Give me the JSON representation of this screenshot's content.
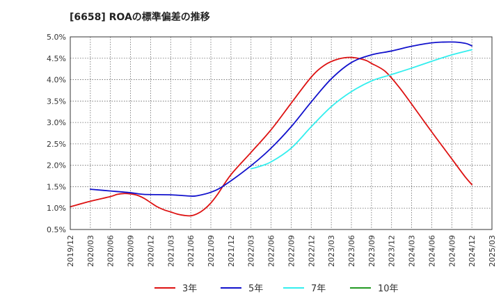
{
  "chart_data": {
    "type": "line",
    "title": "[6658]  ROAの標準偏差の推移",
    "xlabel": "",
    "ylabel": "",
    "ylim": [
      0.5,
      5.0
    ],
    "grid": true,
    "legend_position": "bottom",
    "y_ticks": [
      "0.5%",
      "1.0%",
      "1.5%",
      "2.0%",
      "2.5%",
      "3.0%",
      "3.5%",
      "4.0%",
      "4.5%",
      "5.0%"
    ],
    "x_ticks": [
      "2019/12",
      "2020/03",
      "2020/06",
      "2020/09",
      "2020/12",
      "2021/03",
      "2021/06",
      "2021/09",
      "2021/12",
      "2022/03",
      "2022/06",
      "2022/09",
      "2022/12",
      "2023/03",
      "2023/06",
      "2023/09",
      "2023/12",
      "2024/03",
      "2024/06",
      "2024/09",
      "2024/12",
      "2025/03"
    ],
    "series": [
      {
        "name": "3年",
        "color": "#dd1111",
        "points": [
          [
            "2019/12",
            1.03
          ],
          [
            "2020/03",
            1.16
          ],
          [
            "2020/06",
            1.27
          ],
          [
            "2020/07",
            1.32
          ],
          [
            "2020/08",
            1.34
          ],
          [
            "2020/09",
            1.33
          ],
          [
            "2020/10",
            1.3
          ],
          [
            "2020/11",
            1.23
          ],
          [
            "2020/12",
            1.13
          ],
          [
            "2021/01",
            1.03
          ],
          [
            "2021/02",
            0.96
          ],
          [
            "2021/03",
            0.91
          ],
          [
            "2021/04",
            0.86
          ],
          [
            "2021/05",
            0.83
          ],
          [
            "2021/06",
            0.82
          ],
          [
            "2021/07",
            0.87
          ],
          [
            "2021/08",
            0.97
          ],
          [
            "2021/09",
            1.12
          ],
          [
            "2021/10",
            1.32
          ],
          [
            "2021/12",
            1.78
          ],
          [
            "2022/03",
            2.3
          ],
          [
            "2022/06",
            2.83
          ],
          [
            "2022/09",
            3.45
          ],
          [
            "2022/12",
            4.06
          ],
          [
            "2023/02",
            4.34
          ],
          [
            "2023/04",
            4.48
          ],
          [
            "2023/06",
            4.52
          ],
          [
            "2023/08",
            4.46
          ],
          [
            "2023/09",
            4.38
          ],
          [
            "2023/11",
            4.2
          ],
          [
            "2024/01",
            3.85
          ],
          [
            "2024/03",
            3.43
          ],
          [
            "2024/06",
            2.78
          ],
          [
            "2024/09",
            2.15
          ],
          [
            "2024/11",
            1.73
          ],
          [
            "2024/12",
            1.55
          ]
        ]
      },
      {
        "name": "5年",
        "color": "#1111cc",
        "points": [
          [
            "2020/03",
            1.44
          ],
          [
            "2020/06",
            1.4
          ],
          [
            "2020/09",
            1.36
          ],
          [
            "2020/11",
            1.32
          ],
          [
            "2021/03",
            1.31
          ],
          [
            "2021/06",
            1.28
          ],
          [
            "2021/07",
            1.29
          ],
          [
            "2021/09",
            1.37
          ],
          [
            "2021/11",
            1.53
          ],
          [
            "2022/03",
            1.99
          ],
          [
            "2022/06",
            2.4
          ],
          [
            "2022/09",
            2.9
          ],
          [
            "2022/12",
            3.48
          ],
          [
            "2023/03",
            4.02
          ],
          [
            "2023/06",
            4.4
          ],
          [
            "2023/09",
            4.58
          ],
          [
            "2023/12",
            4.67
          ],
          [
            "2024/03",
            4.78
          ],
          [
            "2024/06",
            4.86
          ],
          [
            "2024/09",
            4.88
          ],
          [
            "2024/11",
            4.85
          ],
          [
            "2024/12",
            4.79
          ]
        ]
      },
      {
        "name": "7年",
        "color": "#33eeee",
        "points": [
          [
            "2022/03",
            1.92
          ],
          [
            "2022/04",
            1.96
          ],
          [
            "2022/06",
            2.08
          ],
          [
            "2022/09",
            2.4
          ],
          [
            "2022/12",
            2.9
          ],
          [
            "2023/03",
            3.37
          ],
          [
            "2023/06",
            3.72
          ],
          [
            "2023/09",
            3.97
          ],
          [
            "2023/12",
            4.12
          ],
          [
            "2024/03",
            4.27
          ],
          [
            "2024/06",
            4.43
          ],
          [
            "2024/09",
            4.58
          ],
          [
            "2024/12",
            4.7
          ]
        ]
      },
      {
        "name": "10年",
        "color": "#229922",
        "points": []
      }
    ]
  }
}
